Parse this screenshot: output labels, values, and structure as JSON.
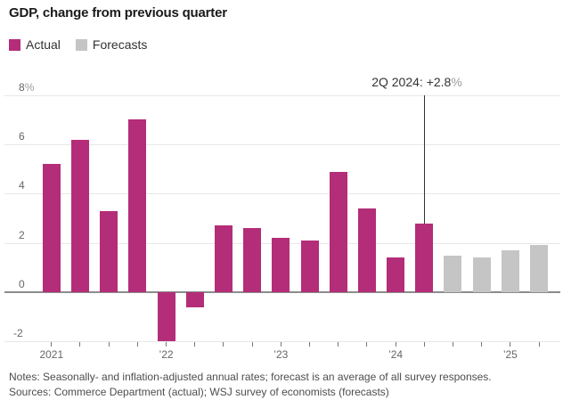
{
  "title": "GDP, change from previous quarter",
  "legend": [
    {
      "label": "Actual",
      "color": "#b42d78"
    },
    {
      "label": "Forecasts",
      "color": "#c5c5c5"
    }
  ],
  "footer": {
    "notes": "Notes: Seasonally- and inflation-adjusted annual rates; forecast is an average of all survey responses.",
    "sources": "Sources: Commerce Department (actual); WSJ survey of economists (forecasts)"
  },
  "chart_data": {
    "type": "bar",
    "title": "GDP, change from previous quarter",
    "xlabel": "",
    "ylabel": "",
    "ylim": [
      -2.6,
      8.2
    ],
    "grid": "horizontal",
    "legend_position": "top-left",
    "y_ticks": [
      {
        "value": 8,
        "label": "8",
        "suffix": "%"
      },
      {
        "value": 6,
        "label": "6",
        "suffix": ""
      },
      {
        "value": 4,
        "label": "4",
        "suffix": ""
      },
      {
        "value": 2,
        "label": "2",
        "suffix": ""
      },
      {
        "value": 0,
        "label": "0",
        "suffix": ""
      },
      {
        "value": -2,
        "label": "-2",
        "suffix": ""
      }
    ],
    "x_year_labels": [
      {
        "label": "2021",
        "bar_index": 0
      },
      {
        "label": "’22",
        "bar_index": 4
      },
      {
        "label": "’23",
        "bar_index": 8
      },
      {
        "label": "’24",
        "bar_index": 12
      },
      {
        "label": "’25",
        "bar_index": 16
      }
    ],
    "bars": [
      {
        "quarter": "1Q 2021",
        "value": 5.2,
        "series": "Actual"
      },
      {
        "quarter": "2Q 2021",
        "value": 6.2,
        "series": "Actual"
      },
      {
        "quarter": "3Q 2021",
        "value": 3.3,
        "series": "Actual"
      },
      {
        "quarter": "4Q 2021",
        "value": 7.0,
        "series": "Actual"
      },
      {
        "quarter": "1Q 2022",
        "value": -2.0,
        "series": "Actual"
      },
      {
        "quarter": "2Q 2022",
        "value": -0.6,
        "series": "Actual"
      },
      {
        "quarter": "3Q 2022",
        "value": 2.7,
        "series": "Actual"
      },
      {
        "quarter": "4Q 2022",
        "value": 2.6,
        "series": "Actual"
      },
      {
        "quarter": "1Q 2023",
        "value": 2.2,
        "series": "Actual"
      },
      {
        "quarter": "2Q 2023",
        "value": 2.1,
        "series": "Actual"
      },
      {
        "quarter": "3Q 2023",
        "value": 4.9,
        "series": "Actual"
      },
      {
        "quarter": "4Q 2023",
        "value": 3.4,
        "series": "Actual"
      },
      {
        "quarter": "1Q 2024",
        "value": 1.4,
        "series": "Actual"
      },
      {
        "quarter": "2Q 2024",
        "value": 2.8,
        "series": "Actual"
      },
      {
        "quarter": "3Q 2024",
        "value": 1.5,
        "series": "Forecasts"
      },
      {
        "quarter": "4Q 2024",
        "value": 1.4,
        "series": "Forecasts"
      },
      {
        "quarter": "1Q 2025",
        "value": 1.7,
        "series": "Forecasts"
      },
      {
        "quarter": "2Q 2025",
        "value": 1.9,
        "series": "Forecasts"
      }
    ],
    "annotation": {
      "text": "2Q 2024: +2.8",
      "suffix": "%",
      "bar_index": 13
    }
  }
}
